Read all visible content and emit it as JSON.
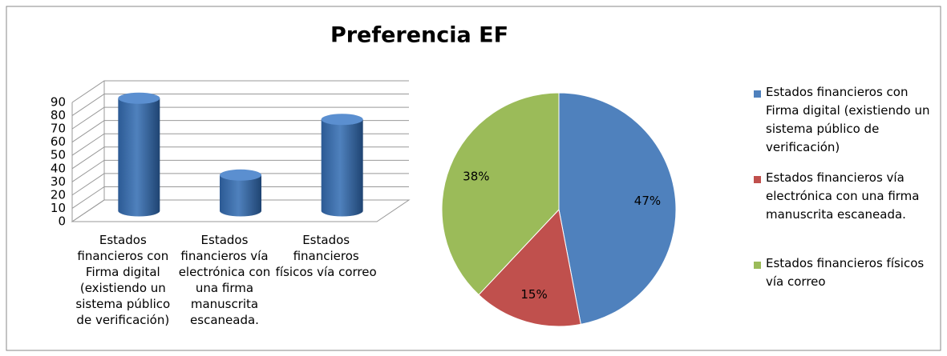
{
  "title": "Preferencia EF",
  "chart_data": [
    {
      "type": "bar3d",
      "categories": [
        "Estados financieros con Firma digital (existiendo un sistema público de verificación)",
        "Estados financieros vía electrónica con una firma manuscrita escaneada.",
        "Estados financieros físicos vía correo"
      ],
      "values": [
        85,
        27,
        69
      ],
      "color": "#4f81bd",
      "ylim": [
        0,
        90
      ],
      "yticks": [
        0,
        10,
        20,
        30,
        40,
        50,
        60,
        70,
        80,
        90
      ],
      "grid": true
    },
    {
      "type": "pie",
      "categories": [
        "Estados financieros con Firma digital (existiendo un sistema público de verificación)",
        "Estados financieros vía electrónica con una firma manuscrita escaneada.",
        "Estados financieros físicos vía correo"
      ],
      "values": [
        47,
        15,
        38
      ],
      "value_labels": [
        "47%",
        "15%",
        "38%"
      ],
      "colors": [
        "#4f81bd",
        "#c0504d",
        "#9bbb59"
      ],
      "legend": "right"
    }
  ]
}
